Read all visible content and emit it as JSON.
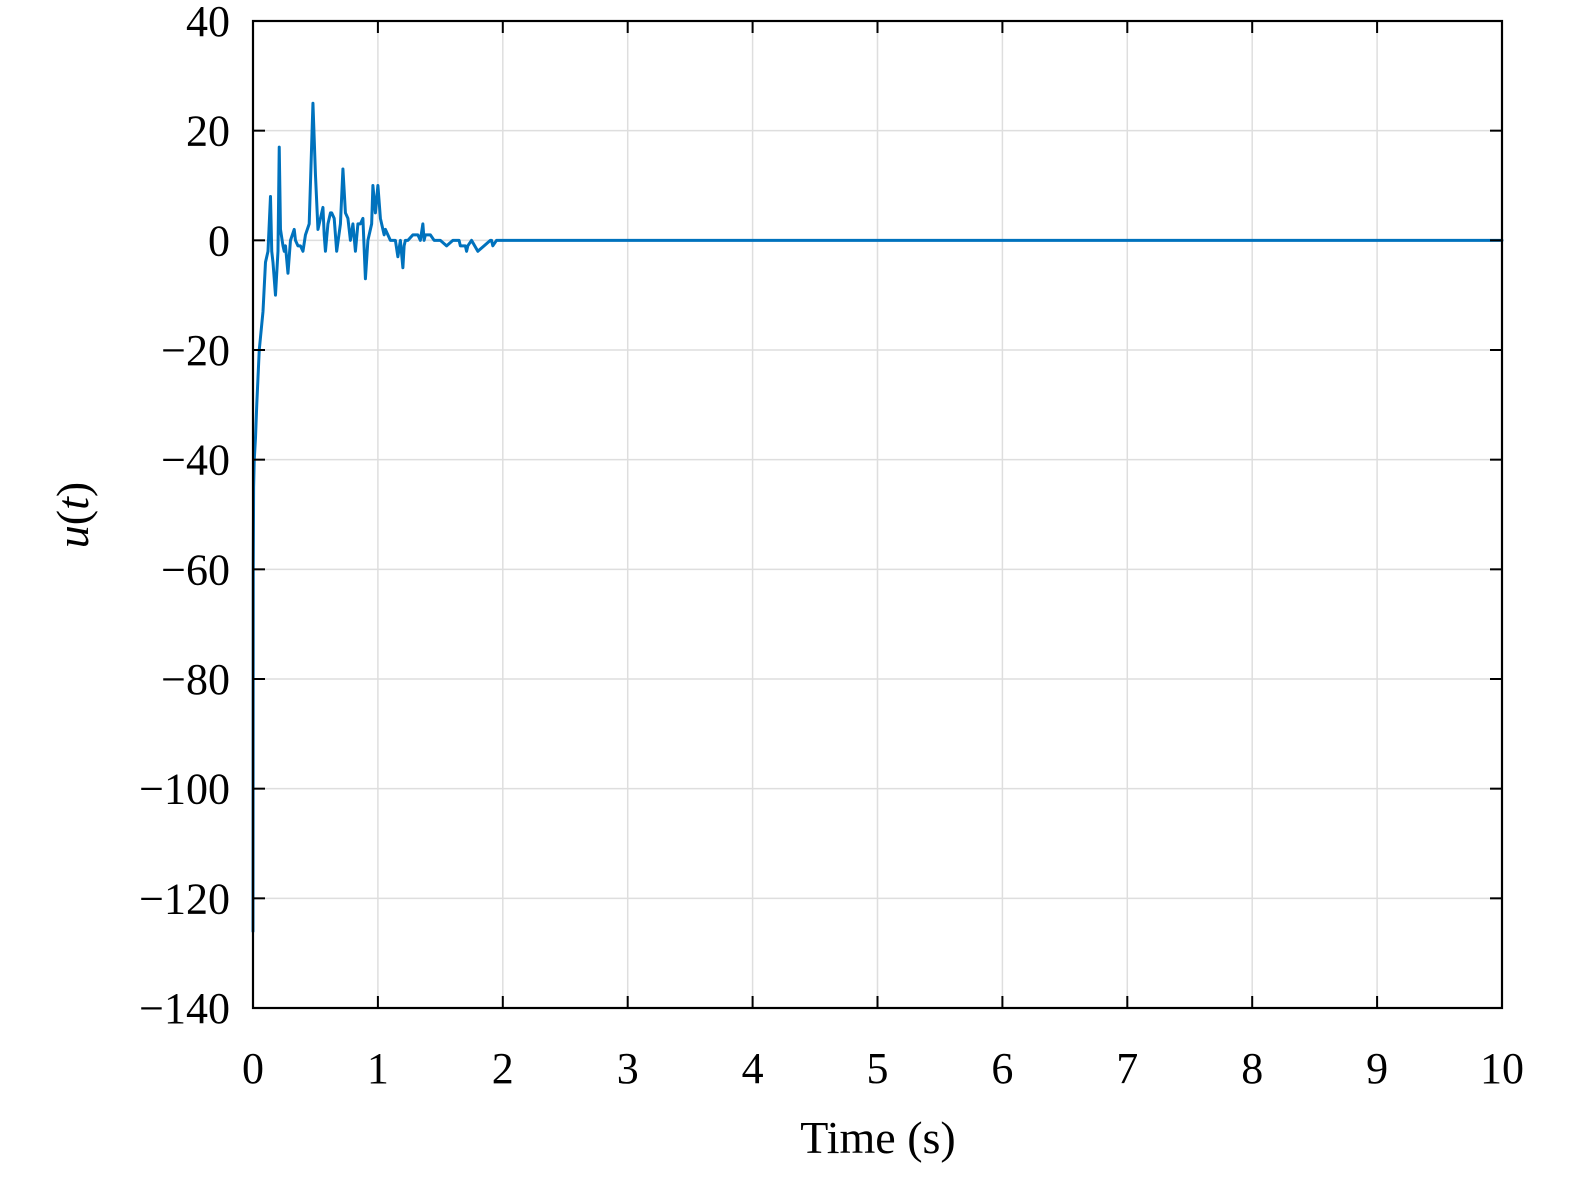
{
  "chart_data": {
    "type": "line",
    "xlabel": "Time (s)",
    "ylabel_parts": {
      "fn": "u",
      "open": "(",
      "arg": "t",
      "close": ")"
    },
    "xlim": [
      0,
      10
    ],
    "ylim": [
      -140,
      40
    ],
    "xticks": [
      0,
      1,
      2,
      3,
      4,
      5,
      6,
      7,
      8,
      9,
      10
    ],
    "yticks": [
      -140,
      -120,
      -100,
      -80,
      -60,
      -40,
      -20,
      0,
      20,
      40
    ],
    "xtick_labels": [
      "0",
      "1",
      "2",
      "3",
      "4",
      "5",
      "6",
      "7",
      "8",
      "9",
      "10"
    ],
    "ytick_labels": [
      "−140",
      "−120",
      "−100",
      "−80",
      "−60",
      "−40",
      "−20",
      "0",
      "20",
      "40"
    ],
    "grid": true,
    "colors": {
      "line": "#0072BD",
      "grid": "#dedede",
      "axis": "#000000"
    },
    "series": [
      {
        "x": [
          0,
          0.002,
          0.005,
          0.01,
          0.02,
          0.03,
          0.05,
          0.08,
          0.1,
          0.12,
          0.14,
          0.15,
          0.16,
          0.18,
          0.2,
          0.21,
          0.22,
          0.24,
          0.25,
          0.26,
          0.28,
          0.3,
          0.33,
          0.34,
          0.36,
          0.38,
          0.4,
          0.42,
          0.45,
          0.48,
          0.5,
          0.52,
          0.55,
          0.56,
          0.57,
          0.58,
          0.6,
          0.62,
          0.63,
          0.65,
          0.67,
          0.7,
          0.72,
          0.74,
          0.76,
          0.78,
          0.8,
          0.82,
          0.84,
          0.86,
          0.88,
          0.9,
          0.92,
          0.94,
          0.95,
          0.96,
          0.98,
          1.0,
          1.02,
          1.04,
          1.05,
          1.06,
          1.08,
          1.1,
          1.12,
          1.14,
          1.16,
          1.18,
          1.2,
          1.21,
          1.22,
          1.24,
          1.28,
          1.32,
          1.34,
          1.36,
          1.37,
          1.38,
          1.4,
          1.41,
          1.42,
          1.45,
          1.5,
          1.55,
          1.6,
          1.65,
          1.66,
          1.68,
          1.7,
          1.71,
          1.72,
          1.75,
          1.8,
          1.85,
          1.9,
          1.91,
          1.92,
          1.95,
          2.0,
          2.05,
          2.06,
          2.1,
          2.15,
          2.16,
          2.2,
          2.3,
          2.4,
          2.5,
          2.6,
          2.7,
          2.8,
          2.81,
          2.9,
          3.0,
          3.1,
          3.2,
          3.3,
          3.4,
          3.5,
          4.0,
          5.0,
          6.0,
          7.0,
          8.0,
          9.0,
          10.0
        ],
        "values": [
          -126,
          -60,
          -45,
          -40,
          -36,
          -30,
          -20,
          -13,
          -4,
          -2,
          8,
          -2,
          -4,
          -10,
          -2,
          17,
          2,
          -1,
          -2,
          -1,
          -6,
          0,
          2,
          0,
          -1,
          -1,
          -2,
          1,
          3,
          25,
          12,
          2,
          5,
          6,
          1,
          -2,
          3,
          5,
          5,
          4,
          -2,
          3,
          13,
          5,
          4,
          0,
          3,
          -2,
          3,
          3,
          4,
          -7,
          0,
          2,
          3,
          10,
          5,
          10,
          4,
          2,
          1,
          2,
          1,
          0,
          0,
          0,
          -3,
          0,
          -5,
          -1,
          0,
          0,
          1,
          1,
          0,
          3,
          0,
          1,
          1,
          1,
          1,
          0,
          0,
          -1,
          0,
          0,
          -1,
          -1,
          -1,
          -2,
          -1,
          0,
          -2,
          -1,
          0,
          0,
          -1,
          0,
          0,
          0,
          0,
          0,
          0,
          0,
          0,
          0,
          0,
          0,
          0,
          0,
          0,
          0,
          0,
          0,
          0,
          0,
          0,
          0,
          0,
          0,
          0,
          0,
          0,
          0,
          0,
          0
        ]
      }
    ]
  }
}
